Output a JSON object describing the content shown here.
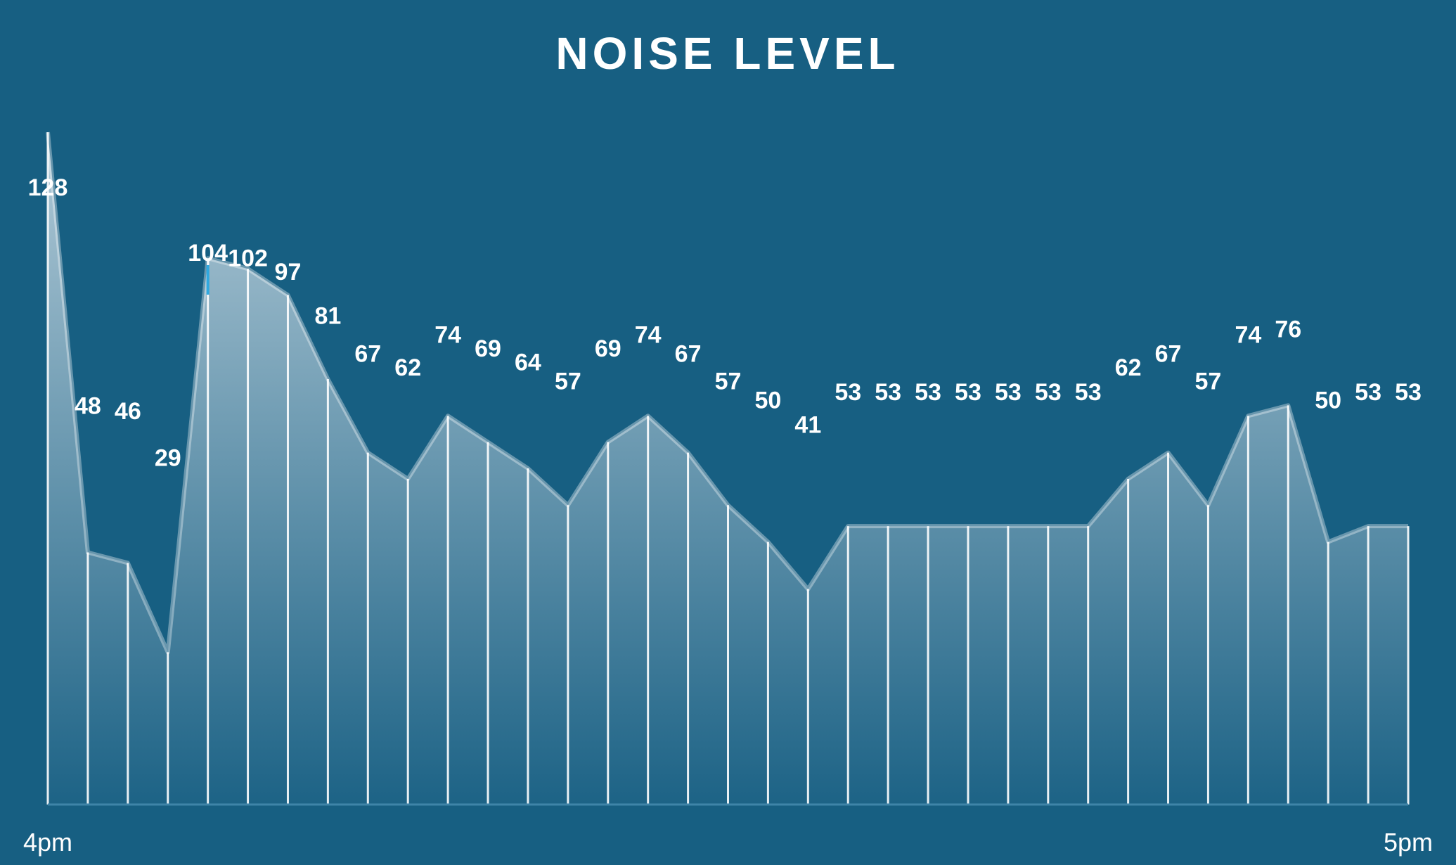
{
  "chart_data": {
    "type": "area",
    "title": "NOISE LEVEL",
    "xlabel": "",
    "ylabel": "",
    "x_tick_labels": [
      "4pm",
      "5pm"
    ],
    "values": [
      128,
      48,
      46,
      29,
      104,
      102,
      97,
      81,
      67,
      62,
      74,
      69,
      64,
      57,
      69,
      74,
      67,
      57,
      50,
      41,
      53,
      53,
      53,
      53,
      53,
      53,
      53,
      62,
      67,
      57,
      74,
      76,
      50,
      53,
      53
    ],
    "grid": false,
    "legend": "none",
    "colors": {
      "background": "#175f82",
      "area_top": "#b9cfdb",
      "area_bottom": "#1d6386",
      "line": "#ffffff",
      "text": "#ffffff",
      "highlight": "#2fa9e0"
    }
  }
}
